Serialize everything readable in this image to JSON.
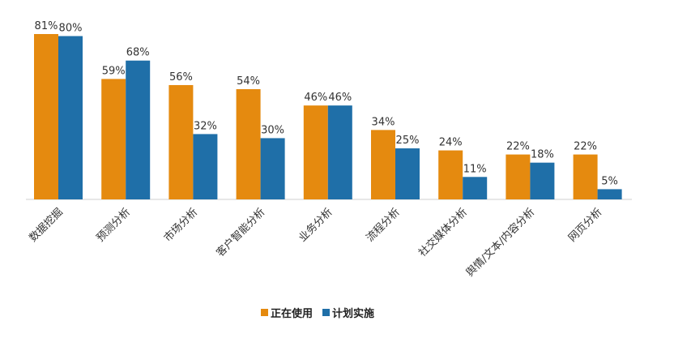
{
  "chart_data": {
    "type": "bar",
    "categories": [
      "数据挖掘",
      "预测分析",
      "市场分析",
      "客户智能分析",
      "业务分析",
      "流程分析",
      "社交媒体分析",
      "舆情/文本/内容分析",
      "网页分析"
    ],
    "series": [
      {
        "name": "正在使用",
        "color": "#E58A0F",
        "values": [
          81,
          59,
          56,
          54,
          46,
          34,
          24,
          22,
          22
        ],
        "labels": [
          "81%",
          "59%",
          "56%",
          "54%",
          "46%",
          "34%",
          "24%",
          "22%",
          "22%"
        ]
      },
      {
        "name": "计划实施",
        "color": "#1F6FA8",
        "values": [
          80,
          68,
          32,
          30,
          46,
          25,
          11,
          18,
          5
        ],
        "labels": [
          "80%",
          "68%",
          "32%",
          "30%",
          "46%",
          "25%",
          "11%",
          "18%",
          "5%"
        ]
      }
    ],
    "ylim": [
      0,
      81
    ],
    "legend": "bottom-center",
    "grid": false
  },
  "legend": {
    "items": [
      {
        "label": "正在使用",
        "color": "#E58A0F"
      },
      {
        "label": "计划实施",
        "color": "#1F6FA8"
      }
    ]
  }
}
